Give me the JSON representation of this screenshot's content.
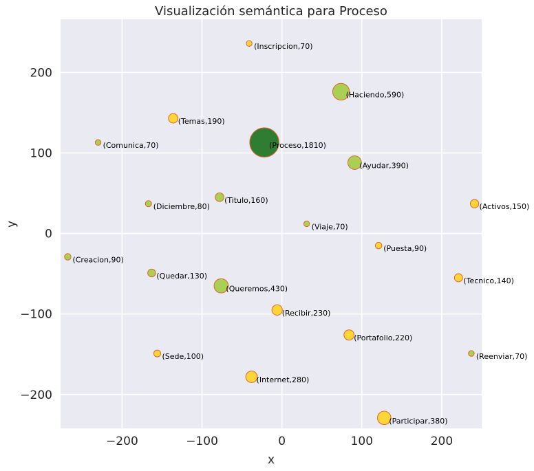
{
  "chart_data": {
    "type": "scatter",
    "title": "Visualización semántica para Proceso",
    "xlabel": "x",
    "ylabel": "y",
    "xlim": [
      -277,
      250
    ],
    "ylim": [
      -242,
      266
    ],
    "xticks": [
      -200,
      -100,
      0,
      100,
      200
    ],
    "yticks": [
      -200,
      -100,
      0,
      100,
      200
    ],
    "xtick_labels": [
      "−200",
      "−100",
      "0",
      "100",
      "200"
    ],
    "ytick_labels": [
      "−200",
      "−100",
      "0",
      "100",
      "200"
    ],
    "grid": true,
    "colors": {
      "background": "#eaeaf2",
      "center": "#2e7d32",
      "green": "#a5cf4c",
      "yellow": "#fdd42e",
      "edge": "#e0662a"
    },
    "points": [
      {
        "word": "Proceso",
        "value": 1810,
        "x": -22,
        "y": 113,
        "color": "center",
        "label": "(Proceso,1810)"
      },
      {
        "word": "Inscripcion",
        "value": 70,
        "x": -41,
        "y": 236,
        "color": "yellow",
        "label": "(Inscripcion,70)"
      },
      {
        "word": "Haciendo",
        "value": 590,
        "x": 74,
        "y": 176,
        "color": "green",
        "label": "(Haciendo,590)"
      },
      {
        "word": "Temas",
        "value": 190,
        "x": -136,
        "y": 143,
        "color": "yellow",
        "label": "(Temas,190)"
      },
      {
        "word": "Comunica",
        "value": 70,
        "x": -230,
        "y": 113,
        "color": "green",
        "label": "(Comunica,70)"
      },
      {
        "word": "Ayudar",
        "value": 390,
        "x": 91,
        "y": 88,
        "color": "green",
        "label": "(Ayudar,390)"
      },
      {
        "word": "Titulo",
        "value": 160,
        "x": -78,
        "y": 45,
        "color": "green",
        "label": "(Titulo,160)"
      },
      {
        "word": "Diciembre",
        "value": 80,
        "x": -167,
        "y": 37,
        "color": "green",
        "label": "(Diciembre,80)"
      },
      {
        "word": "Activos",
        "value": 150,
        "x": 241,
        "y": 37,
        "color": "yellow",
        "label": "(Activos,150)"
      },
      {
        "word": "Viaje",
        "value": 70,
        "x": 31,
        "y": 12,
        "color": "green",
        "label": "(Viaje,70)"
      },
      {
        "word": "Puesta",
        "value": 90,
        "x": 121,
        "y": -15,
        "color": "yellow",
        "label": "(Puesta,90)"
      },
      {
        "word": "Creacion",
        "value": 90,
        "x": -268,
        "y": -29,
        "color": "green",
        "label": "(Creacion,90)"
      },
      {
        "word": "Quedar",
        "value": 130,
        "x": -163,
        "y": -49,
        "color": "green",
        "label": "(Quedar,130)"
      },
      {
        "word": "Queremos",
        "value": 430,
        "x": -76,
        "y": -65,
        "color": "green",
        "label": "(Queremos,430)"
      },
      {
        "word": "Tecnico",
        "value": 140,
        "x": 221,
        "y": -55,
        "color": "yellow",
        "label": "(Tecnico,140)"
      },
      {
        "word": "Recibir",
        "value": 230,
        "x": -6,
        "y": -95,
        "color": "yellow",
        "label": "(Recibir,230)"
      },
      {
        "word": "Portafolio",
        "value": 220,
        "x": 84,
        "y": -126,
        "color": "yellow",
        "label": "(Portafolio,220)"
      },
      {
        "word": "Sede",
        "value": 100,
        "x": -156,
        "y": -149,
        "color": "yellow",
        "label": "(Sede,100)"
      },
      {
        "word": "Reenviar",
        "value": 70,
        "x": 237,
        "y": -149,
        "color": "green",
        "label": "(Reenviar,70)"
      },
      {
        "word": "Internet",
        "value": 280,
        "x": -38,
        "y": -178,
        "color": "yellow",
        "label": "(Internet,280)"
      },
      {
        "word": "Participar",
        "value": 380,
        "x": 128,
        "y": -229,
        "color": "yellow",
        "label": "(Participar,380)"
      }
    ]
  }
}
